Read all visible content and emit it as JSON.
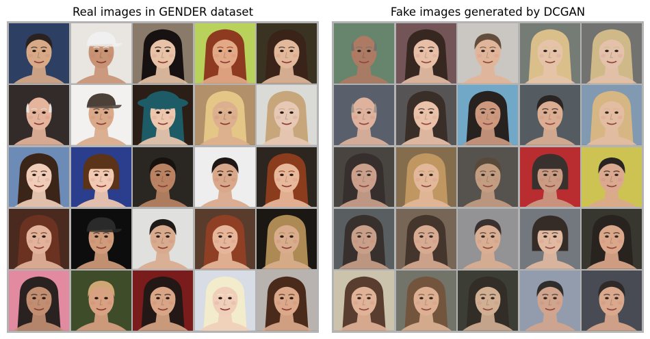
{
  "panels": [
    {
      "id": "real",
      "title": "Real images in GENDER dataset",
      "tiles": [
        {
          "bg": "#2d3f63",
          "skin": "#d8a987",
          "hair": "#2a2220",
          "style": "short"
        },
        {
          "bg": "#e9e6e2",
          "skin": "#c89374",
          "hair": "#f0f0f0",
          "style": "cap"
        },
        {
          "bg": "#8a7a6a",
          "skin": "#e7c2a6",
          "hair": "#171211",
          "style": "long"
        },
        {
          "bg": "#b8d25c",
          "skin": "#e3a987",
          "hair": "#8e3a20",
          "style": "long"
        },
        {
          "bg": "#3b3322",
          "skin": "#e2b89a",
          "hair": "#3a241a",
          "style": "curly"
        },
        {
          "bg": "#332b2a",
          "skin": "#e4b49c",
          "hair": "#e7e2dc",
          "style": "bald"
        },
        {
          "bg": "#f2f1ef",
          "skin": "#d9a98a",
          "hair": "#4b4139",
          "style": "cap"
        },
        {
          "bg": "#2a1e16",
          "skin": "#ecc7ae",
          "hair": "#1d5b66",
          "style": "hat"
        },
        {
          "bg": "#b1906a",
          "skin": "#dcaf8e",
          "hair": "#e4c687",
          "style": "long"
        },
        {
          "bg": "#dadad7",
          "skin": "#e6c8b4",
          "hair": "#c7a67b",
          "style": "long"
        },
        {
          "bg": "#6c8bb6",
          "skin": "#efcdb8",
          "hair": "#3b2418",
          "style": "long"
        },
        {
          "bg": "#2b3d8d",
          "skin": "#f2c9b2",
          "hair": "#5a3318",
          "style": "bob"
        },
        {
          "bg": "#2a2622",
          "skin": "#b98263",
          "hair": "#18120f",
          "style": "short"
        },
        {
          "bg": "#eeeeee",
          "skin": "#d9a78a",
          "hair": "#1e1715",
          "style": "short"
        },
        {
          "bg": "#2c2520",
          "skin": "#e8b89b",
          "hair": "#8a3c1c",
          "style": "long"
        },
        {
          "bg": "#4a2a1f",
          "skin": "#e2b39a",
          "hair": "#6b3222",
          "style": "long"
        },
        {
          "bg": "#0d0d0e",
          "skin": "#cf9b7a",
          "hair": "#2a2a2a",
          "style": "cap"
        },
        {
          "bg": "#e0e0de",
          "skin": "#d8ab8e",
          "hair": "#1e1a18",
          "style": "short"
        },
        {
          "bg": "#5a3c2d",
          "skin": "#e6b69a",
          "hair": "#8f3f24",
          "style": "curly"
        },
        {
          "bg": "#1b1814",
          "skin": "#d8ac8c",
          "hair": "#ad8a53",
          "style": "long"
        },
        {
          "bg": "#e28aa0",
          "skin": "#c18e72",
          "hair": "#2a2220",
          "style": "long"
        },
        {
          "bg": "#3f4c2a",
          "skin": "#d8a181",
          "hair": "#cfa774",
          "style": "short"
        },
        {
          "bg": "#7a1b1c",
          "skin": "#d8a586",
          "hair": "#231816",
          "style": "long"
        },
        {
          "bg": "#d8dce4",
          "skin": "#f0cfba",
          "hair": "#f3eccc",
          "style": "curly"
        },
        {
          "bg": "#b8b3ae",
          "skin": "#dba98a",
          "hair": "#4a2b1b",
          "style": "long"
        }
      ]
    },
    {
      "id": "fake",
      "title": "Fake images generated by DCGAN",
      "tiles": [
        {
          "bg": "#5d7e63",
          "skin": "#a8725a",
          "hair": "#6a6a63",
          "style": "bald"
        },
        {
          "bg": "#6b4a4d",
          "skin": "#e6bba2",
          "hair": "#2a1a14",
          "style": "long"
        },
        {
          "bg": "#c7c3be",
          "skin": "#e0b193",
          "hair": "#5a4332",
          "style": "short"
        },
        {
          "bg": "#6d746e",
          "skin": "#e4c0a4",
          "hair": "#d8bc84",
          "style": "long"
        },
        {
          "bg": "#6a6a68",
          "skin": "#e2bea5",
          "hair": "#cdb582",
          "style": "long"
        },
        {
          "bg": "#4f5662",
          "skin": "#dcae97",
          "hair": "#9c8f85",
          "style": "bald"
        },
        {
          "bg": "#4d4a4c",
          "skin": "#e9bfa4",
          "hair": "#2e211b",
          "style": "long"
        },
        {
          "bg": "#6aa3c4",
          "skin": "#c99378",
          "hair": "#1a1413",
          "style": "long"
        },
        {
          "bg": "#4a5258",
          "skin": "#d9a98d",
          "hair": "#1d1816",
          "style": "short"
        },
        {
          "bg": "#7a93ad",
          "skin": "#e2b99d",
          "hair": "#d4b27c",
          "style": "long"
        },
        {
          "bg": "#3d3a36",
          "skin": "#c79b86",
          "hair": "#2a2221",
          "style": "long"
        },
        {
          "bg": "#7c6441",
          "skin": "#e2b494",
          "hair": "#bd9158",
          "style": "long"
        },
        {
          "bg": "#4c4842",
          "skin": "#c0977b",
          "hair": "#4e3f2e",
          "style": "short"
        },
        {
          "bg": "#b51f22",
          "skin": "#c7967c",
          "hair": "#2c2521",
          "style": "bob"
        },
        {
          "bg": "#c9c048",
          "skin": "#d9a488",
          "hair": "#1c1714",
          "style": "short"
        },
        {
          "bg": "#4f5458",
          "skin": "#c59a82",
          "hair": "#2b2420",
          "style": "long"
        },
        {
          "bg": "#6f5c4b",
          "skin": "#d5a68c",
          "hair": "#3a2a20",
          "style": "long"
        },
        {
          "bg": "#8d8c8e",
          "skin": "#d8a98c",
          "hair": "#2c2522",
          "style": "short"
        },
        {
          "bg": "#6b6f76",
          "skin": "#e0b59c",
          "hair": "#2a1f1a",
          "style": "bob"
        },
        {
          "bg": "#2b2a22",
          "skin": "#d9a283",
          "hair": "#1c1611",
          "style": "curly"
        },
        {
          "bg": "#c9c0a8",
          "skin": "#dfae91",
          "hair": "#4f3222",
          "style": "long"
        },
        {
          "bg": "#6a6c60",
          "skin": "#dbac8d",
          "hair": "#6b4a30",
          "style": "long"
        },
        {
          "bg": "#30322a",
          "skin": "#ceaa8c",
          "hair": "#26201a",
          "style": "curly"
        },
        {
          "bg": "#8c96a8",
          "skin": "#cf9f86",
          "hair": "#242120",
          "style": "short"
        },
        {
          "bg": "#3d4049",
          "skin": "#d7a386",
          "hair": "#231d1a",
          "style": "short"
        }
      ]
    }
  ]
}
